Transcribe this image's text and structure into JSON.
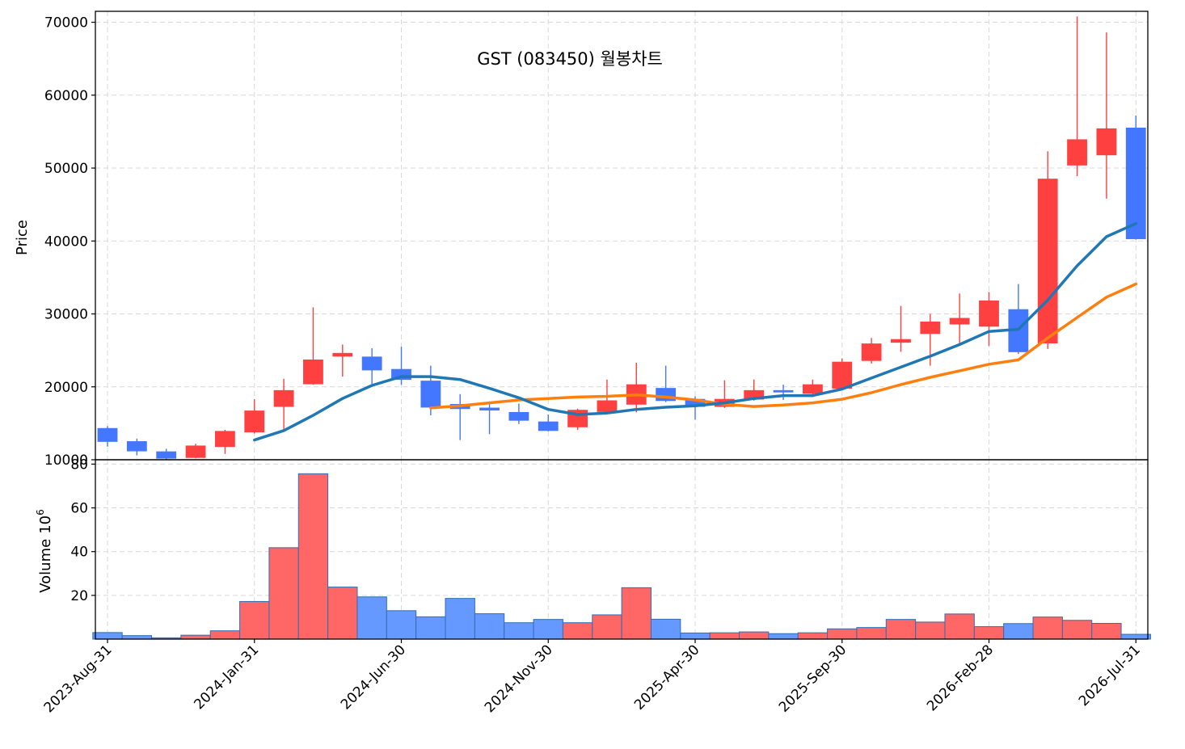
{
  "chart_data": {
    "type": "candlestick",
    "title": "GST (083450) 월봉차트",
    "price_axis": {
      "ylabel": "Price",
      "ylim": [
        10000,
        71500
      ],
      "ticks": [
        10000,
        20000,
        30000,
        40000,
        50000,
        60000,
        70000
      ]
    },
    "volume_axis": {
      "ylabel": "Volume",
      "ylabel_exp": "6",
      "ylim": [
        0,
        82
      ],
      "ticks": [
        20,
        40,
        60,
        80
      ]
    },
    "x_tick_labels": [
      {
        "index": 0,
        "label": "2023-Aug-31"
      },
      {
        "index": 5,
        "label": "2024-Jan-31"
      },
      {
        "index": 10,
        "label": "2024-Jun-30"
      },
      {
        "index": 15,
        "label": "2024-Nov-30"
      },
      {
        "index": 20,
        "label": "2025-Apr-30"
      },
      {
        "index": 25,
        "label": "2025-Sep-30"
      },
      {
        "index": 30,
        "label": "2026-Feb-28"
      },
      {
        "index": 35,
        "label": "2026-Jul-31"
      }
    ],
    "grid": true,
    "colors": {
      "up": "#ff4040",
      "down": "#4477ff",
      "up_volume": "#ff6666",
      "down_volume": "#6699ff",
      "volume_edge": "#2f6eb3",
      "ma_short": "#1f77b4",
      "ma_long": "#ff7f0e"
    },
    "candles": [
      {
        "date": "2023-08-31",
        "open": 14300,
        "high": 14600,
        "low": 11800,
        "close": 12500
      },
      {
        "date": "2023-09-30",
        "open": 12500,
        "high": 12900,
        "low": 10600,
        "close": 11200
      },
      {
        "date": "2023-10-31",
        "open": 11100,
        "high": 11500,
        "low": 10000,
        "close": 10200
      },
      {
        "date": "2023-11-30",
        "open": 10300,
        "high": 12200,
        "low": 10200,
        "close": 11900
      },
      {
        "date": "2023-12-31",
        "open": 11800,
        "high": 14100,
        "low": 10800,
        "close": 13900
      },
      {
        "date": "2024-01-31",
        "open": 13800,
        "high": 18300,
        "low": 13600,
        "close": 16700
      },
      {
        "date": "2024-02-29",
        "open": 17300,
        "high": 21100,
        "low": 14100,
        "close": 19500
      },
      {
        "date": "2024-03-31",
        "open": 20400,
        "high": 30900,
        "low": 20300,
        "close": 23700
      },
      {
        "date": "2024-04-30",
        "open": 24200,
        "high": 25800,
        "low": 21400,
        "close": 24600
      },
      {
        "date": "2024-05-31",
        "open": 24100,
        "high": 25300,
        "low": 20400,
        "close": 22300
      },
      {
        "date": "2024-06-30",
        "open": 22400,
        "high": 25500,
        "low": 20300,
        "close": 21000
      },
      {
        "date": "2024-07-31",
        "open": 20800,
        "high": 22900,
        "low": 16100,
        "close": 17200
      },
      {
        "date": "2024-08-31",
        "open": 17600,
        "high": 19000,
        "low": 12700,
        "close": 17000
      },
      {
        "date": "2024-09-30",
        "open": 17100,
        "high": 18000,
        "low": 13500,
        "close": 16800
      },
      {
        "date": "2024-10-31",
        "open": 16500,
        "high": 17700,
        "low": 14900,
        "close": 15400
      },
      {
        "date": "2024-11-30",
        "open": 15200,
        "high": 16200,
        "low": 13900,
        "close": 14000
      },
      {
        "date": "2024-12-31",
        "open": 14500,
        "high": 17000,
        "low": 14100,
        "close": 16800
      },
      {
        "date": "2025-01-31",
        "open": 16600,
        "high": 21000,
        "low": 16400,
        "close": 18100
      },
      {
        "date": "2025-02-28",
        "open": 17600,
        "high": 23300,
        "low": 16500,
        "close": 20300
      },
      {
        "date": "2025-03-31",
        "open": 19800,
        "high": 22900,
        "low": 17900,
        "close": 18100
      },
      {
        "date": "2025-04-30",
        "open": 18300,
        "high": 18700,
        "low": 15500,
        "close": 17300
      },
      {
        "date": "2025-05-31",
        "open": 17300,
        "high": 20900,
        "low": 17100,
        "close": 18300
      },
      {
        "date": "2025-06-30",
        "open": 18300,
        "high": 21000,
        "low": 18100,
        "close": 19500
      },
      {
        "date": "2025-07-31",
        "open": 19500,
        "high": 20300,
        "low": 18200,
        "close": 19300
      },
      {
        "date": "2025-08-31",
        "open": 19100,
        "high": 21000,
        "low": 18600,
        "close": 20300
      },
      {
        "date": "2025-09-30",
        "open": 19800,
        "high": 23900,
        "low": 19600,
        "close": 23400
      },
      {
        "date": "2025-10-31",
        "open": 23600,
        "high": 26700,
        "low": 23200,
        "close": 25900
      },
      {
        "date": "2025-11-30",
        "open": 26100,
        "high": 31100,
        "low": 24800,
        "close": 26500
      },
      {
        "date": "2025-12-31",
        "open": 27300,
        "high": 30000,
        "low": 22900,
        "close": 28900
      },
      {
        "date": "2026-01-31",
        "open": 28600,
        "high": 32800,
        "low": 25800,
        "close": 29400
      },
      {
        "date": "2026-02-28",
        "open": 28300,
        "high": 33000,
        "low": 25600,
        "close": 31800
      },
      {
        "date": "2026-03-31",
        "open": 30600,
        "high": 34100,
        "low": 24500,
        "close": 24800
      },
      {
        "date": "2026-04-30",
        "open": 26000,
        "high": 52300,
        "low": 25200,
        "close": 48500
      },
      {
        "date": "2026-05-31",
        "open": 50400,
        "high": 70800,
        "low": 48900,
        "close": 53900
      },
      {
        "date": "2026-06-30",
        "open": 51800,
        "high": 68600,
        "low": 45800,
        "close": 55400
      },
      {
        "date": "2026-07-31",
        "open": 55500,
        "high": 57200,
        "low": 40200,
        "close": 40300
      }
    ],
    "volume": [
      3.0,
      1.6,
      0.6,
      1.8,
      3.8,
      17.2,
      41.8,
      75.6,
      23.8,
      19.3,
      13.0,
      10.2,
      18.6,
      11.6,
      7.5,
      9.0,
      7.5,
      11.1,
      23.5,
      9.1,
      2.8,
      2.9,
      3.3,
      2.5,
      2.9,
      4.7,
      5.3,
      9.0,
      7.8,
      11.5,
      5.7,
      7.1,
      10.1,
      8.6,
      7.2,
      2.2
    ],
    "ma_short": {
      "start_index": 5,
      "values": [
        12700,
        14000,
        16100,
        18400,
        20200,
        21400,
        21400,
        21000,
        19800,
        18500,
        16900,
        16200,
        16400,
        16900,
        17200,
        17400,
        17800,
        18400,
        18800,
        18800,
        19700,
        21200,
        22700,
        24200,
        25800,
        27600,
        27900,
        31900,
        36600,
        40600,
        42400
      ]
    },
    "ma_long": {
      "start_index": 11,
      "values": [
        17100,
        17400,
        17800,
        18200,
        18400,
        18600,
        18700,
        18900,
        18600,
        18200,
        17600,
        17300,
        17500,
        17800,
        18300,
        19200,
        20300,
        21300,
        22200,
        23100,
        23700,
        26700,
        29500,
        32300,
        34100
      ]
    }
  }
}
